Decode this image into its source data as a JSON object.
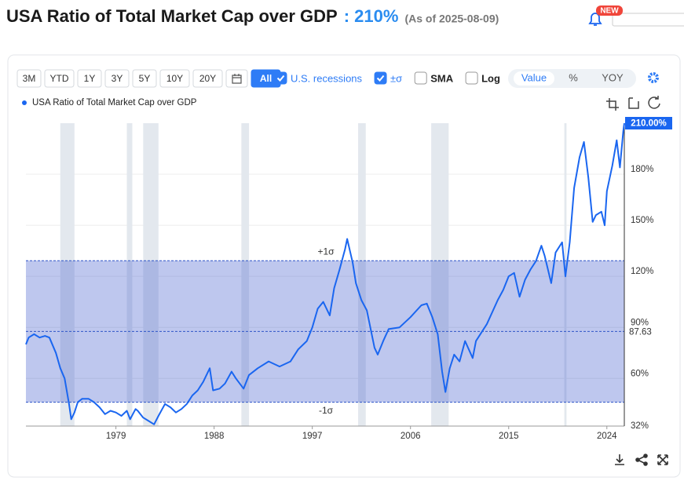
{
  "header": {
    "title": "USA Ratio of Total Market Cap over GDP",
    "value": ": 210%",
    "as_of": "(As of 2025-08-09)",
    "badge": "NEW"
  },
  "toolbar": {
    "ranges": [
      {
        "label": "3M",
        "selected": false
      },
      {
        "label": "YTD",
        "selected": false
      },
      {
        "label": "1Y",
        "selected": false
      },
      {
        "label": "3Y",
        "selected": false
      },
      {
        "label": "5Y",
        "selected": false
      },
      {
        "label": "10Y",
        "selected": false
      },
      {
        "label": "20Y",
        "selected": false
      },
      {
        "label": "All",
        "selected": true
      }
    ],
    "options": [
      {
        "label": "U.S. recessions",
        "checked": true
      },
      {
        "label": "±σ",
        "checked": true
      },
      {
        "label": "SMA",
        "checked": false
      },
      {
        "label": "Log",
        "checked": false
      }
    ],
    "modes": [
      {
        "label": "Value",
        "selected": true
      },
      {
        "label": "%",
        "selected": false
      },
      {
        "label": "YOY",
        "selected": false
      }
    ]
  },
  "chart_data": {
    "type": "line",
    "series": [
      {
        "name": "USA Ratio of Total Market Cap over GDP",
        "color": "#1a66f0",
        "x": [
          1970.75,
          1971.0,
          1971.5,
          1972.0,
          1972.5,
          1972.9,
          1973.5,
          1973.9,
          1974.3,
          1974.7,
          1974.9,
          1975.2,
          1975.5,
          1975.9,
          1976.5,
          1977.0,
          1977.5,
          1978.0,
          1978.5,
          1979.0,
          1979.5,
          1980.0,
          1980.3,
          1980.8,
          1981.0,
          1981.5,
          1982.0,
          1982.5,
          1982.9,
          1983.5,
          1984.0,
          1984.5,
          1985.0,
          1985.5,
          1986.0,
          1986.5,
          1987.0,
          1987.6,
          1987.9,
          1988.5,
          1989.0,
          1989.6,
          1990.0,
          1990.7,
          1991.2,
          1992.0,
          1993.0,
          1994.0,
          1995.0,
          1995.7,
          1996.5,
          1997.0,
          1997.5,
          1998.0,
          1998.6,
          1999.0,
          1999.5,
          2000.0,
          2000.2,
          2000.7,
          2001.0,
          2001.5,
          2002.0,
          2002.7,
          2003.0,
          2003.5,
          2004.0,
          2005.0,
          2006.0,
          2007.0,
          2007.5,
          2008.0,
          2008.5,
          2008.9,
          2009.2,
          2009.6,
          2010.0,
          2010.5,
          2011.0,
          2011.7,
          2012.0,
          2013.0,
          2014.0,
          2014.5,
          2015.0,
          2015.5,
          2016.0,
          2016.5,
          2017.0,
          2017.5,
          2018.0,
          2018.3,
          2018.9,
          2019.3,
          2019.9,
          2020.2,
          2020.6,
          2021.0,
          2021.5,
          2021.9,
          2022.3,
          2022.7,
          2023.0,
          2023.5,
          2023.8,
          2024.0,
          2024.5,
          2024.9,
          2025.2,
          2025.5,
          2025.6
        ],
        "values": [
          80,
          84,
          86,
          84,
          85,
          84,
          75,
          66,
          60,
          45,
          36,
          40,
          46,
          48,
          48,
          46,
          43,
          39,
          41,
          40,
          38,
          41,
          36,
          42,
          41,
          37,
          35,
          33,
          38,
          45,
          43,
          40,
          42,
          45,
          50,
          53,
          58,
          66,
          53,
          54,
          57,
          64,
          60,
          54,
          62,
          66,
          70,
          67,
          70,
          77,
          82,
          90,
          101,
          105,
          97,
          113,
          124,
          136,
          142,
          128,
          116,
          106,
          100,
          78,
          74,
          82,
          89,
          90,
          96,
          103,
          104,
          96,
          86,
          64,
          52,
          66,
          74,
          70,
          82,
          72,
          82,
          92,
          106,
          112,
          120,
          122,
          108,
          118,
          124,
          129,
          138,
          132,
          116,
          134,
          140,
          120,
          140,
          172,
          190,
          199,
          178,
          152,
          156,
          158,
          150,
          170,
          185,
          200,
          184,
          205,
          210
        ]
      }
    ],
    "last_value_label": "210.00%",
    "xlim": [
      1970.75,
      2025.6
    ],
    "xticks": [
      1979,
      1988,
      1997,
      2006,
      2015,
      2024
    ],
    "ylim": [
      32,
      210
    ],
    "yticks": [
      {
        "value": 32,
        "label": "32%"
      },
      {
        "value": 60,
        "label": "60%"
      },
      {
        "value": 90,
        "label": "90%"
      },
      {
        "value": 120,
        "label": "120%"
      },
      {
        "value": 150,
        "label": "150%"
      },
      {
        "value": 180,
        "label": "180%"
      }
    ],
    "recessions": [
      [
        1973.9,
        1975.2
      ],
      [
        1980.0,
        1980.5
      ],
      [
        1981.5,
        1982.9
      ],
      [
        1990.5,
        1991.2
      ],
      [
        2001.2,
        2001.9
      ],
      [
        2007.9,
        2009.5
      ],
      [
        2020.1,
        2020.3
      ]
    ],
    "sigma_band": {
      "mean": 87.63,
      "upper": 129.2,
      "lower": 46.0,
      "upper_label": "+1σ",
      "lower_label": "-1σ"
    },
    "grid": true
  }
}
